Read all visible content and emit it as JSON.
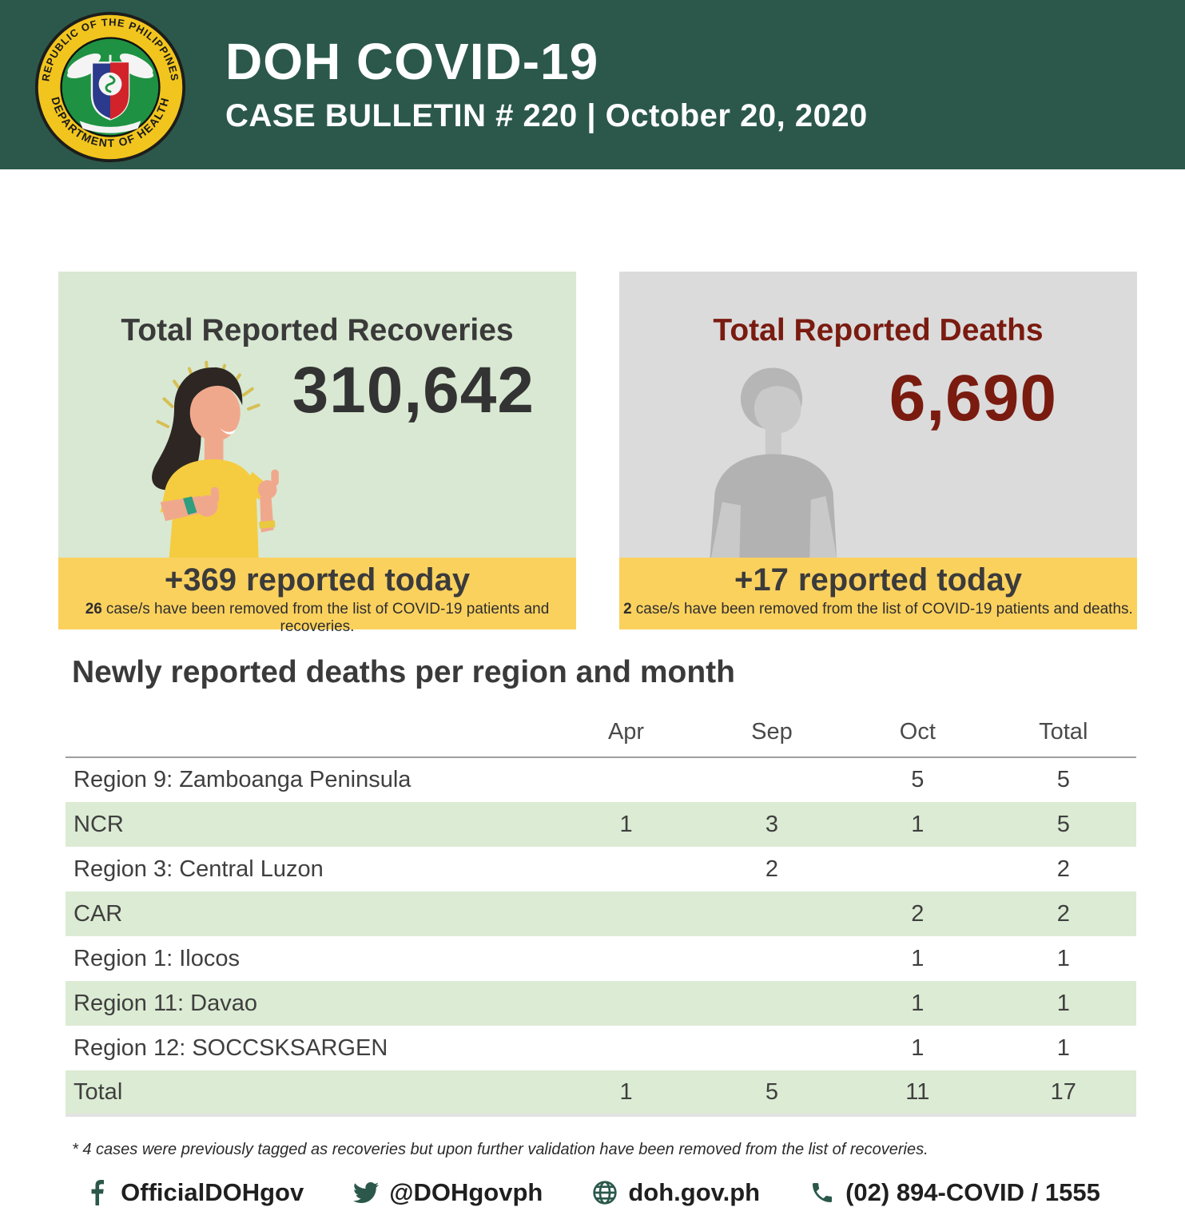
{
  "header": {
    "title": "DOH COVID-19",
    "subtitle": "CASE BULLETIN # 220 | October 20, 2020",
    "logo_ring_top": "REPUBLIC OF THE PHILIPPINES",
    "logo_ring_bottom": "DEPARTMENT OF HEALTH"
  },
  "cards": {
    "recoveries": {
      "title": "Total Reported Recoveries",
      "value": "310,642",
      "delta": "+369",
      "delta_text": "reported today",
      "note_count": "26",
      "note_text": "case/s have been removed from the list of COVID-19 patients and recoveries."
    },
    "deaths": {
      "title": "Total Reported Deaths",
      "value": "6,690",
      "delta": "+17",
      "delta_text": "reported today",
      "note_count": "2",
      "note_text": "case/s have been removed from the list of COVID-19 patients and deaths."
    }
  },
  "table": {
    "title": "Newly reported deaths per region and month",
    "columns": [
      "Apr",
      "Sep",
      "Oct",
      "Total"
    ],
    "rows": [
      {
        "region": "Region 9: Zamboanga Peninsula",
        "apr": "",
        "sep": "",
        "oct": "5",
        "total": "5"
      },
      {
        "region": "NCR",
        "apr": "1",
        "sep": "3",
        "oct": "1",
        "total": "5"
      },
      {
        "region": "Region 3: Central Luzon",
        "apr": "",
        "sep": "2",
        "oct": "",
        "total": "2"
      },
      {
        "region": "CAR",
        "apr": "",
        "sep": "",
        "oct": "2",
        "total": "2"
      },
      {
        "region": "Region 1: Ilocos",
        "apr": "",
        "sep": "",
        "oct": "1",
        "total": "1"
      },
      {
        "region": "Region 11: Davao",
        "apr": "",
        "sep": "",
        "oct": "1",
        "total": "1"
      },
      {
        "region": "Region 12: SOCCSKSARGEN",
        "apr": "",
        "sep": "",
        "oct": "1",
        "total": "1"
      },
      {
        "region": "Total",
        "apr": "1",
        "sep": "5",
        "oct": "11",
        "total": "17"
      }
    ]
  },
  "footnote": "* 4 cases were previously tagged as recoveries but upon further validation have been removed from the list of recoveries.",
  "footer": {
    "facebook": "OfficialDOHgov",
    "twitter": "@DOHgovph",
    "website": "doh.gov.ph",
    "phone": "(02) 894-COVID / 1555"
  },
  "colors": {
    "header_green": "#2B584B",
    "card_green": "#D9E8D2",
    "card_gray": "#DBDBDB",
    "strip_yellow": "#FBD15E",
    "row_green": "#DCEBD3",
    "maroon": "#7A1B10",
    "text_dark": "#3A3A3A"
  }
}
